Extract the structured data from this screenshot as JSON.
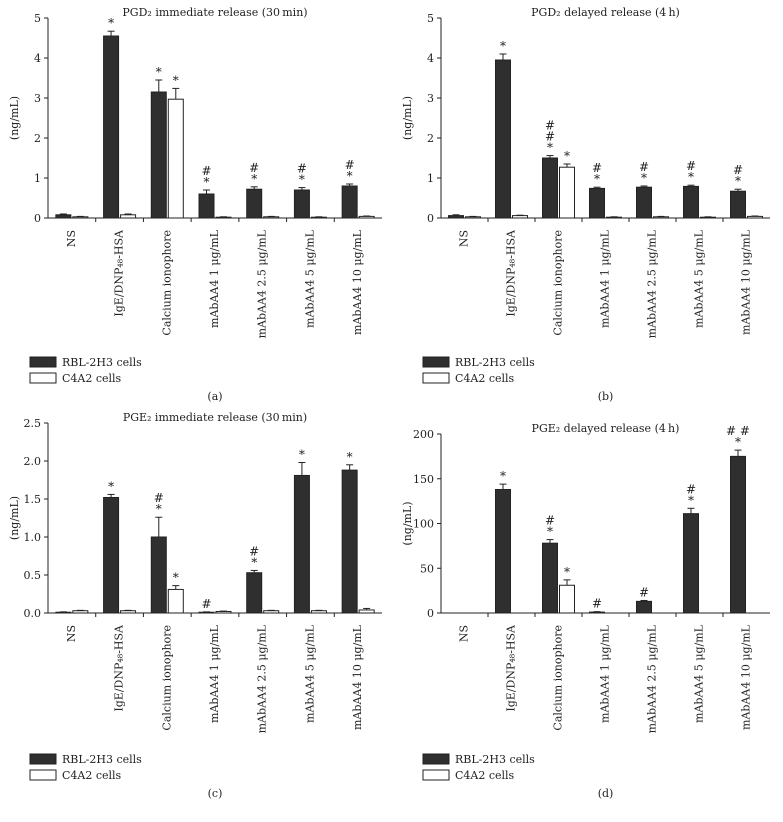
{
  "figure": {
    "legend": {
      "dark_label": "RBL-2H3 cells",
      "light_label": "C4A2 cells"
    },
    "colors": {
      "dark_bar": "#2f2f2f",
      "light_bar": "#ffffff",
      "axis": "#222222"
    }
  },
  "chart_data": [
    {
      "type": "bar",
      "panel": "(a)",
      "title": "PGD₂ immediate release (30 min)",
      "ylabel": "(ng/mL)",
      "ylim": [
        0,
        5
      ],
      "yticks": [
        "0",
        "1",
        "2",
        "3",
        "4",
        "5"
      ],
      "categories": [
        "NS",
        "IgE/DNP₄₈-HSA",
        "Calcium ionophore",
        "mAbAA4 1 μg/mL",
        "mAbAA4 2.5 μg/mL",
        "mAbAA4 5 μg/mL",
        "mAbAA4 10 μg/mL"
      ],
      "series": [
        {
          "name": "RBL-2H3 cells",
          "values": [
            0.08,
            4.55,
            3.15,
            0.6,
            0.72,
            0.7,
            0.8
          ],
          "errors": [
            0.02,
            0.12,
            0.3,
            0.1,
            0.06,
            0.06,
            0.05
          ],
          "annotations": [
            "",
            "*",
            "*",
            "#\n*",
            "#\n*",
            "#\n*",
            "#\n*"
          ]
        },
        {
          "name": "C4A2 cells",
          "values": [
            0.03,
            0.08,
            2.97,
            0.02,
            0.03,
            0.02,
            0.04
          ],
          "errors": [
            0.01,
            0.02,
            0.27,
            0.01,
            0.01,
            0.01,
            0.01
          ],
          "annotations": [
            "",
            "",
            "*",
            "",
            "",
            "",
            ""
          ]
        }
      ]
    },
    {
      "type": "bar",
      "panel": "(b)",
      "title": "PGD₂ delayed release (4 h)",
      "ylabel": "(ng/mL)",
      "ylim": [
        0,
        5
      ],
      "yticks": [
        "0",
        "1",
        "2",
        "3",
        "4",
        "5"
      ],
      "categories": [
        "NS",
        "IgE/DNP₄₈-HSA",
        "Calcium ionophore",
        "mAbAA4 1 μg/mL",
        "mAbAA4 2.5 μg/mL",
        "mAbAA4 5 μg/mL",
        "mAbAA4 10 μg/mL"
      ],
      "series": [
        {
          "name": "RBL-2H3 cells",
          "values": [
            0.06,
            3.95,
            1.5,
            0.74,
            0.77,
            0.79,
            0.67
          ],
          "errors": [
            0.02,
            0.15,
            0.06,
            0.03,
            0.03,
            0.03,
            0.05
          ],
          "annotations": [
            "",
            "*",
            "#\n#\n*",
            "#\n*",
            "#\n*",
            "#\n*",
            "#\n*"
          ]
        },
        {
          "name": "C4A2 cells",
          "values": [
            0.03,
            0.06,
            1.27,
            0.02,
            0.03,
            0.02,
            0.04
          ],
          "errors": [
            0.01,
            0.01,
            0.08,
            0.01,
            0.01,
            0.01,
            0.01
          ],
          "annotations": [
            "",
            "",
            "*",
            "",
            "",
            "",
            ""
          ]
        }
      ]
    },
    {
      "type": "bar",
      "panel": "(c)",
      "title": "PGE₂ immediate release (30 min)",
      "ylabel": "(ng/mL)",
      "ylim": [
        0,
        2.5
      ],
      "yticks": [
        "0.0",
        "0.5",
        "1.0",
        "1.5",
        "2.0",
        "2.5"
      ],
      "categories": [
        "NS",
        "IgE/DNP₄₈-HSA",
        "Calcium ionophore",
        "mAbAA4 1 μg/mL",
        "mAbAA4 2.5 μg/mL",
        "mAbAA4 5 μg/mL",
        "mAbAA4 10 μg/mL"
      ],
      "series": [
        {
          "name": "RBL-2H3 cells",
          "values": [
            0.01,
            1.52,
            1.0,
            0.01,
            0.53,
            1.81,
            1.88
          ],
          "errors": [
            0.005,
            0.04,
            0.26,
            0.005,
            0.03,
            0.17,
            0.07
          ],
          "annotations": [
            "",
            "*",
            "#\n*",
            "#",
            "#\n*",
            "*",
            "*"
          ]
        },
        {
          "name": "C4A2 cells",
          "values": [
            0.03,
            0.03,
            0.31,
            0.02,
            0.03,
            0.03,
            0.04
          ],
          "errors": [
            0.005,
            0.005,
            0.05,
            0.005,
            0.005,
            0.005,
            0.02
          ],
          "annotations": [
            "",
            "",
            "*",
            "",
            "",
            "",
            ""
          ]
        }
      ]
    },
    {
      "type": "bar",
      "panel": "(d)",
      "title": "PGE₂ delayed release (4 h)",
      "ylabel": "(ng/mL)",
      "ylim": [
        0,
        200
      ],
      "yticks": [
        "0",
        "50",
        "100",
        "150",
        "200"
      ],
      "categories": [
        "NS",
        "IgE/DNP₄₈-HSA",
        "Calcium ionophore",
        "mAbAA4 1 μg/mL",
        "mAbAA4 2.5 μg/mL",
        "mAbAA4 5 μg/mL",
        "mAbAA4 10 μg/mL"
      ],
      "series": [
        {
          "name": "RBL-2H3 cells",
          "values": [
            0,
            138,
            78,
            1,
            13,
            111,
            175
          ],
          "errors": [
            0,
            6,
            4,
            0.5,
            1,
            6,
            7
          ],
          "annotations": [
            "",
            "*",
            "#\n*",
            "#",
            "#",
            "#\n*",
            "# #\n*"
          ]
        },
        {
          "name": "C4A2 cells",
          "values": [
            0,
            0,
            31,
            0,
            0,
            0,
            0
          ],
          "errors": [
            0,
            0,
            6,
            0,
            0,
            0,
            0
          ],
          "annotations": [
            "",
            "",
            "*",
            "",
            "",
            "",
            ""
          ]
        }
      ]
    }
  ]
}
